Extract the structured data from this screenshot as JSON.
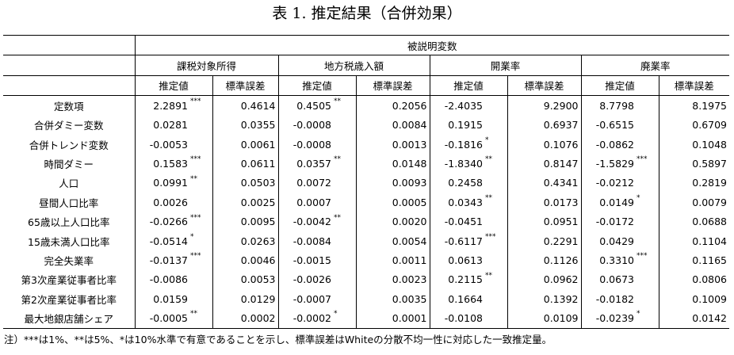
{
  "title": "表 1.  推定結果（合併効果）",
  "header": {
    "top": "被説明変数",
    "groups": [
      "課税対象所得",
      "地方税歳入額",
      "開業率",
      "廃業率"
    ],
    "est_label": "推定値",
    "se_label": "標準誤差"
  },
  "rows": [
    {
      "label": "定数項",
      "cells": [
        {
          "est": "2.2891",
          "star": "***",
          "se": "0.4614"
        },
        {
          "est": "0.4505",
          "star": "**",
          "se": "0.2056"
        },
        {
          "est": "-2.4035",
          "star": "",
          "se": "9.2900"
        },
        {
          "est": "8.7798",
          "star": "",
          "se": "8.1975"
        }
      ]
    },
    {
      "label": "合併ダミー変数",
      "cells": [
        {
          "est": "0.0281",
          "star": "",
          "se": "0.0355"
        },
        {
          "est": "-0.0008",
          "star": "",
          "se": "0.0084"
        },
        {
          "est": "0.1915",
          "star": "",
          "se": "0.6937"
        },
        {
          "est": "-0.6515",
          "star": "",
          "se": "0.6709"
        }
      ]
    },
    {
      "label": "合併トレンド変数",
      "cells": [
        {
          "est": "-0.0053",
          "star": "",
          "se": "0.0061"
        },
        {
          "est": "-0.0008",
          "star": "",
          "se": "0.0013"
        },
        {
          "est": "-0.1816",
          "star": "*",
          "se": "0.1076"
        },
        {
          "est": "-0.0862",
          "star": "",
          "se": "0.1048"
        }
      ]
    },
    {
      "label": "時間ダミー",
      "cells": [
        {
          "est": "0.1583",
          "star": "***",
          "se": "0.0611"
        },
        {
          "est": "0.0357",
          "star": "**",
          "se": "0.0148"
        },
        {
          "est": "-1.8340",
          "star": "**",
          "se": "0.8147"
        },
        {
          "est": "-1.5829",
          "star": "***",
          "se": "0.5897"
        }
      ]
    },
    {
      "label": "人口",
      "cells": [
        {
          "est": "0.0991",
          "star": "**",
          "se": "0.0503"
        },
        {
          "est": "0.0072",
          "star": "",
          "se": "0.0093"
        },
        {
          "est": "0.2458",
          "star": "",
          "se": "0.4341"
        },
        {
          "est": "-0.0212",
          "star": "",
          "se": "0.2819"
        }
      ]
    },
    {
      "label": "昼間人口比率",
      "cells": [
        {
          "est": "0.0026",
          "star": "",
          "se": "0.0025"
        },
        {
          "est": "0.0007",
          "star": "",
          "se": "0.0005"
        },
        {
          "est": "0.0343",
          "star": "**",
          "se": "0.0173"
        },
        {
          "est": "0.0149",
          "star": "*",
          "se": "0.0079"
        }
      ]
    },
    {
      "label": "65歳以上人口比率",
      "cells": [
        {
          "est": "-0.0266",
          "star": "***",
          "se": "0.0095"
        },
        {
          "est": "-0.0042",
          "star": "**",
          "se": "0.0020"
        },
        {
          "est": "-0.0451",
          "star": "",
          "se": "0.0951"
        },
        {
          "est": "-0.0172",
          "star": "",
          "se": "0.0688"
        }
      ]
    },
    {
      "label": "15歳未満人口比率",
      "cells": [
        {
          "est": "-0.0514",
          "star": "*",
          "se": "0.0263"
        },
        {
          "est": "-0.0084",
          "star": "",
          "se": "0.0054"
        },
        {
          "est": "-0.6117",
          "star": "***",
          "se": "0.2291"
        },
        {
          "est": "0.0429",
          "star": "",
          "se": "0.1104"
        }
      ]
    },
    {
      "label": "完全失業率",
      "cells": [
        {
          "est": "-0.0137",
          "star": "***",
          "se": "0.0046"
        },
        {
          "est": "-0.0015",
          "star": "",
          "se": "0.0011"
        },
        {
          "est": "0.0613",
          "star": "",
          "se": "0.1126"
        },
        {
          "est": "0.3310",
          "star": "***",
          "se": "0.1165"
        }
      ]
    },
    {
      "label": "第3次産業従事者比率",
      "cells": [
        {
          "est": "-0.0086",
          "star": "",
          "se": "0.0053"
        },
        {
          "est": "-0.0026",
          "star": "",
          "se": "0.0023"
        },
        {
          "est": "0.2115",
          "star": "**",
          "se": "0.0962"
        },
        {
          "est": "0.0673",
          "star": "",
          "se": "0.0806"
        }
      ]
    },
    {
      "label": "第2次産業従事者比率",
      "cells": [
        {
          "est": "0.0159",
          "star": "",
          "se": "0.0129"
        },
        {
          "est": "-0.0007",
          "star": "",
          "se": "0.0035"
        },
        {
          "est": "0.1664",
          "star": "",
          "se": "0.1392"
        },
        {
          "est": "-0.0182",
          "star": "",
          "se": "0.1009"
        }
      ]
    },
    {
      "label": "最大地銀店舗シェア",
      "cells": [
        {
          "est": "-0.0005",
          "star": "**",
          "se": "0.0002"
        },
        {
          "est": "-0.0002",
          "star": "*",
          "se": "0.0001"
        },
        {
          "est": "-0.0108",
          "star": "",
          "se": "0.0109"
        },
        {
          "est": "-0.0239",
          "star": "*",
          "se": "0.0142"
        }
      ]
    }
  ],
  "note": "注）***は1%、**は5%、*は10%水準で有意であることを示し、標準誤差はWhiteの分散不均一性に対応した一致推定量。"
}
